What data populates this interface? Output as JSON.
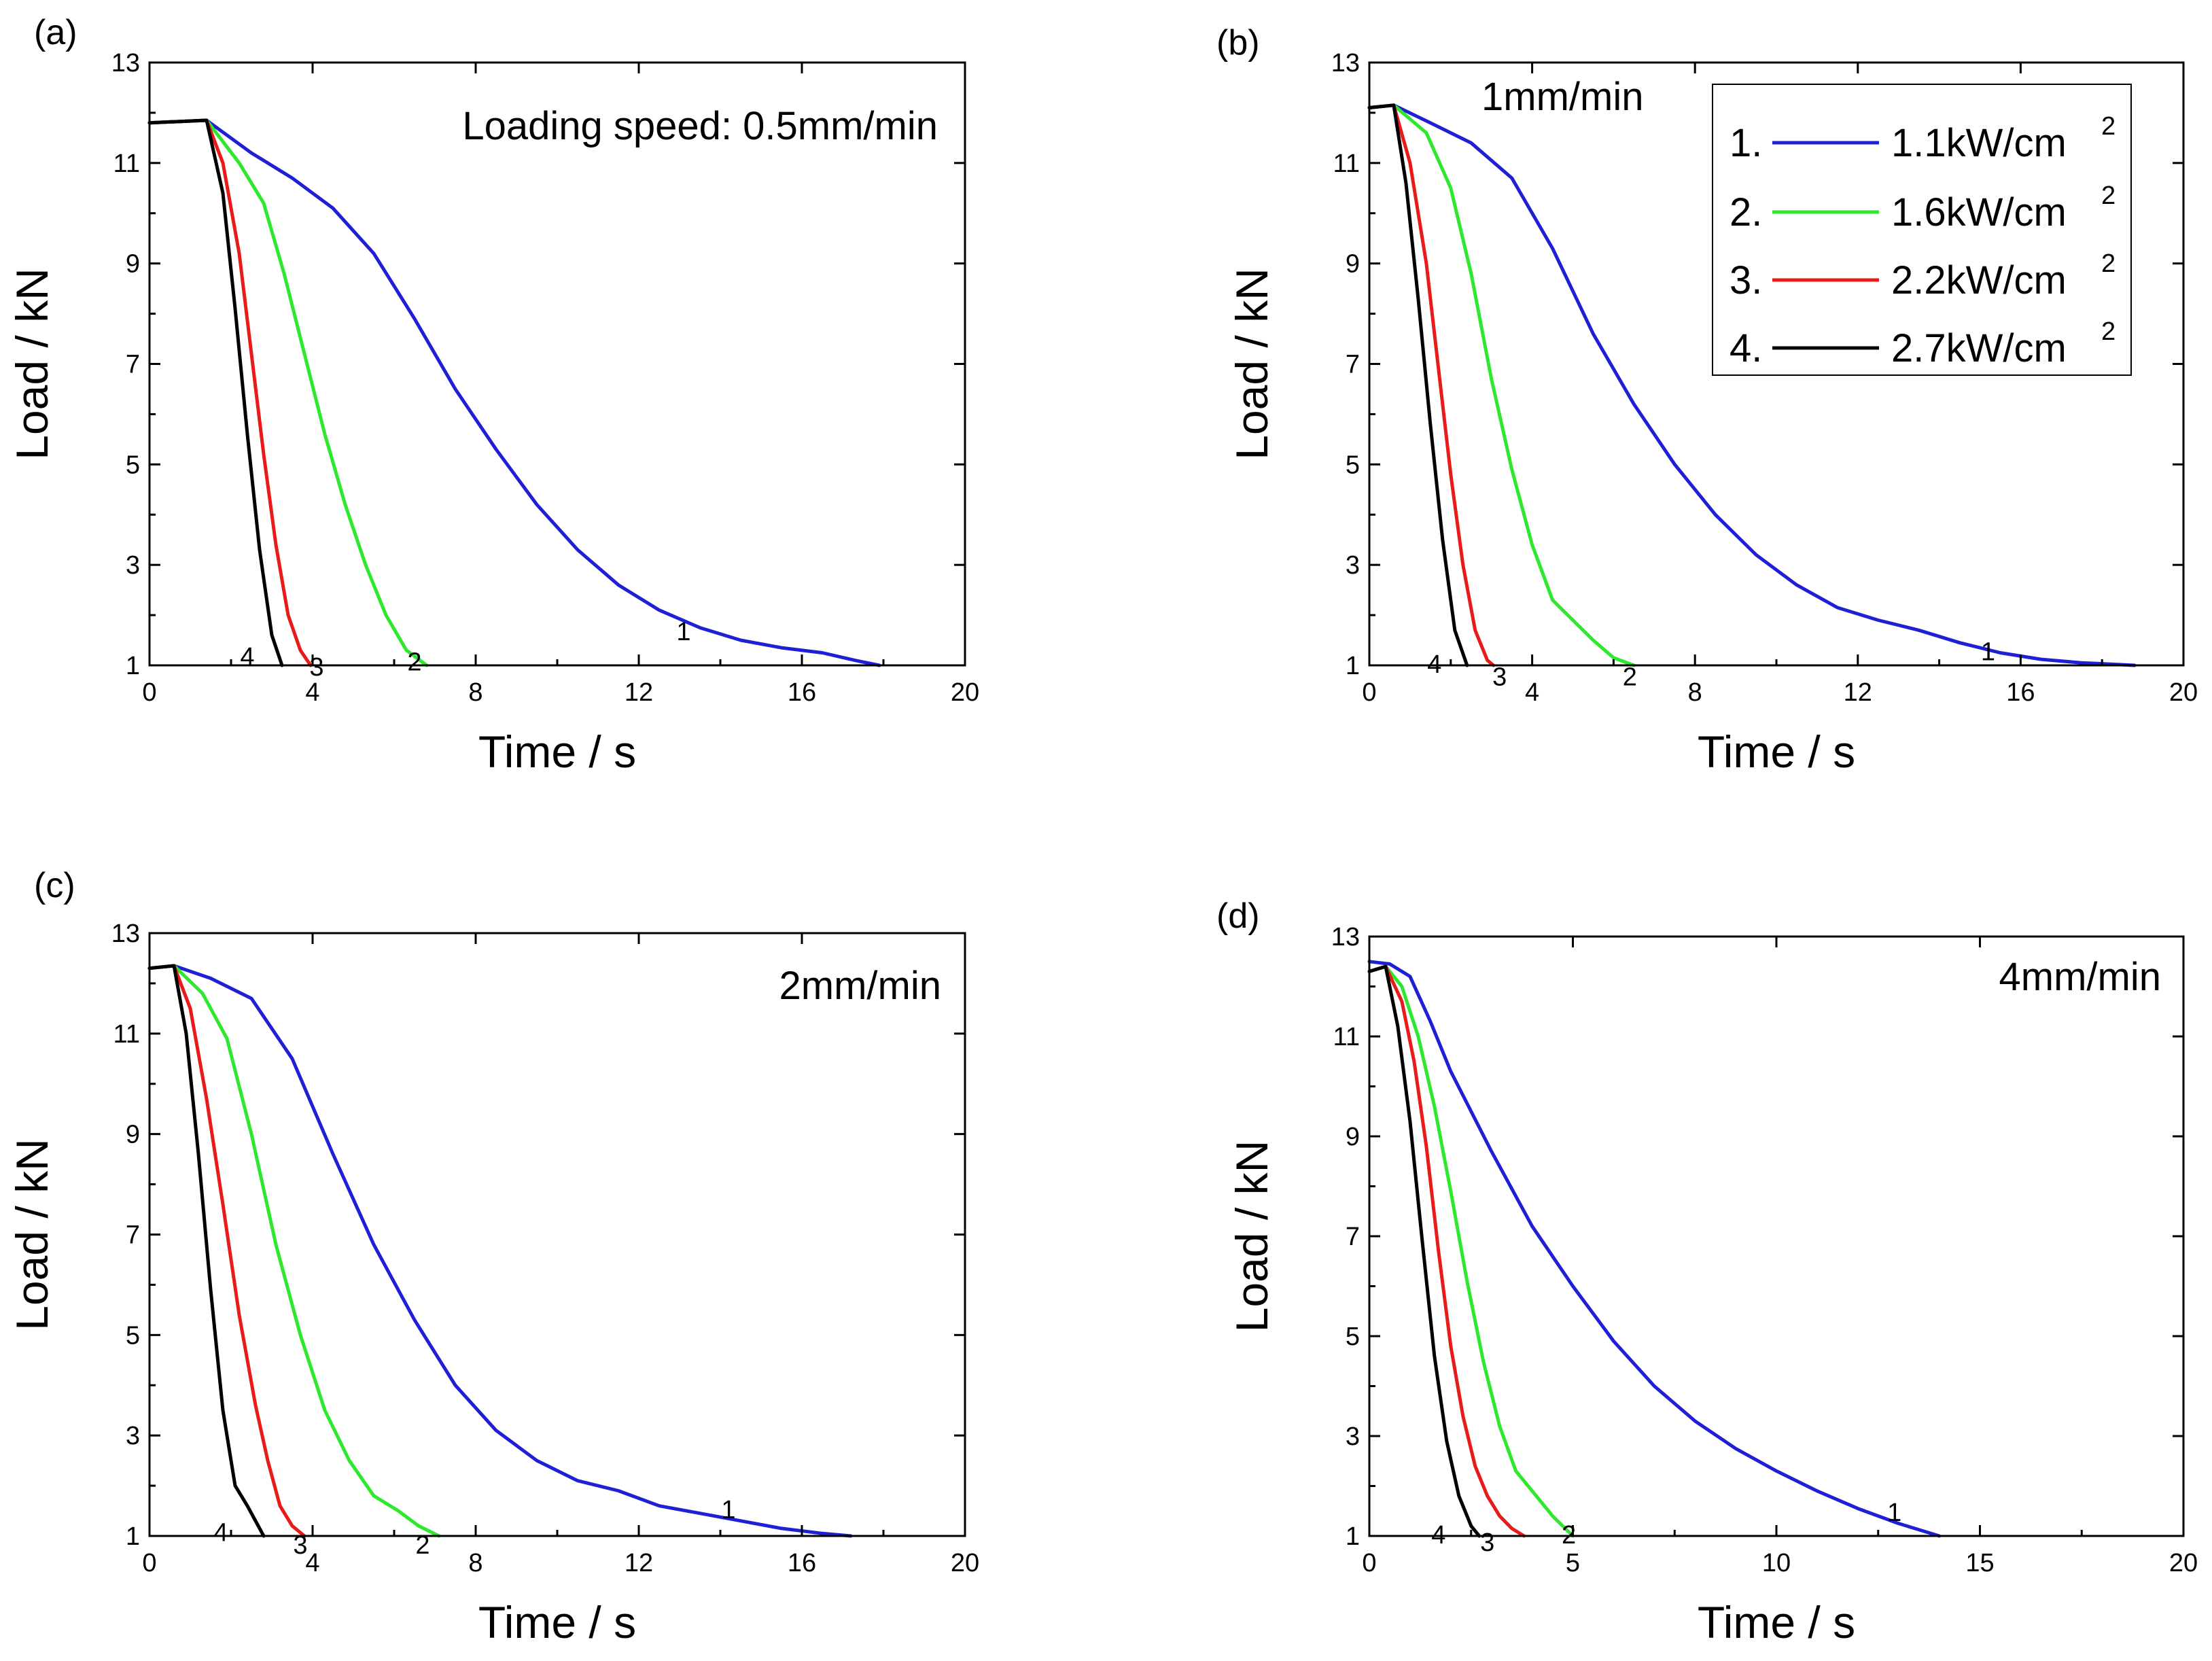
{
  "figure": {
    "colors": {
      "s1": "#1f1fd6",
      "s2": "#2ee82e",
      "s3": "#e81a1a",
      "s4": "#000000",
      "axis": "#000000",
      "bg": "#ffffff"
    },
    "legend": {
      "entries": [
        {
          "num": "1.",
          "label": "1.1kW/cm",
          "sup": "2",
          "key": "s1"
        },
        {
          "num": "2.",
          "label": "1.6kW/cm",
          "sup": "2",
          "key": "s2"
        },
        {
          "num": "3.",
          "label": "2.2kW/cm",
          "sup": "2",
          "key": "s3"
        },
        {
          "num": "4.",
          "label": "2.7kW/cm",
          "sup": "2",
          "key": "s4"
        }
      ]
    }
  },
  "chart_data": [
    {
      "panel": "(a)",
      "type": "line",
      "annotation": "Loading speed: 0.5mm/min",
      "xlabel": "Time / s",
      "ylabel": "Load / kN",
      "xlim": [
        0,
        20
      ],
      "ylim": [
        1,
        13
      ],
      "xticks": [
        "0",
        "4",
        "8",
        "12",
        "16",
        "20"
      ],
      "yticks": [
        "1",
        "3",
        "5",
        "7",
        "9",
        "11",
        "13"
      ],
      "series": [
        {
          "name": "1",
          "key": "s1",
          "label_at": [
            13.1,
            1.5
          ],
          "x": [
            0,
            1.4,
            2.5,
            3.5,
            4.5,
            5.5,
            6.5,
            7.5,
            8.5,
            9.5,
            10.5,
            11.5,
            12.5,
            13.5,
            14.5,
            15.5,
            16.5,
            17.3,
            17.9
          ],
          "y": [
            11.8,
            11.85,
            11.2,
            10.7,
            10.1,
            9.2,
            7.9,
            6.5,
            5.3,
            4.2,
            3.3,
            2.6,
            2.1,
            1.75,
            1.5,
            1.35,
            1.25,
            1.1,
            1.0
          ]
        },
        {
          "name": "2",
          "key": "s2",
          "label_at": [
            6.5,
            0.9
          ],
          "x": [
            0,
            1.4,
            2.2,
            2.8,
            3.3,
            3.8,
            4.3,
            4.8,
            5.3,
            5.8,
            6.3,
            6.8
          ],
          "y": [
            11.8,
            11.85,
            11.0,
            10.2,
            8.8,
            7.2,
            5.6,
            4.2,
            3.0,
            2.0,
            1.3,
            1.0
          ]
        },
        {
          "name": "3",
          "key": "s3",
          "label_at": [
            4.1,
            0.8
          ],
          "x": [
            0,
            1.4,
            1.8,
            2.2,
            2.5,
            2.8,
            3.1,
            3.4,
            3.7,
            3.95
          ],
          "y": [
            11.8,
            11.85,
            11.0,
            9.2,
            7.2,
            5.2,
            3.4,
            2.0,
            1.3,
            1.0
          ]
        },
        {
          "name": "4",
          "key": "s4",
          "label_at": [
            2.4,
            1.0
          ],
          "x": [
            0,
            1.4,
            1.8,
            2.1,
            2.4,
            2.7,
            3.0,
            3.25
          ],
          "y": [
            11.8,
            11.85,
            10.4,
            8.1,
            5.6,
            3.3,
            1.6,
            1.0
          ]
        }
      ]
    },
    {
      "panel": "(b)",
      "type": "line",
      "annotation": "1mm/min",
      "xlabel": "Time / s",
      "ylabel": "Load / kN",
      "xlim": [
        0,
        20
      ],
      "ylim": [
        1,
        13
      ],
      "xticks": [
        "0",
        "4",
        "8",
        "12",
        "16",
        "20"
      ],
      "yticks": [
        "1",
        "3",
        "5",
        "7",
        "9",
        "11",
        "13"
      ],
      "series": [
        {
          "name": "1",
          "key": "s1",
          "label_at": [
            15.2,
            1.1
          ],
          "x": [
            0,
            0.6,
            1.5,
            2.5,
            3.5,
            4.5,
            5.5,
            6.5,
            7.5,
            8.5,
            9.5,
            10.5,
            11.5,
            12.5,
            13.5,
            14.5,
            15.5,
            16.5,
            17.5,
            18.3,
            18.8
          ],
          "y": [
            12.1,
            12.15,
            11.8,
            11.4,
            10.7,
            9.3,
            7.6,
            6.2,
            5.0,
            4.0,
            3.2,
            2.6,
            2.15,
            1.9,
            1.7,
            1.45,
            1.25,
            1.12,
            1.05,
            1.02,
            1.0
          ]
        },
        {
          "name": "2",
          "key": "s2",
          "label_at": [
            6.4,
            0.6
          ],
          "x": [
            0,
            0.6,
            1.4,
            2.0,
            2.5,
            3.0,
            3.5,
            4.0,
            4.5,
            5.0,
            5.5,
            6.0,
            6.5
          ],
          "y": [
            12.1,
            12.15,
            11.6,
            10.5,
            8.8,
            6.7,
            4.9,
            3.4,
            2.3,
            1.9,
            1.5,
            1.15,
            1.0
          ]
        },
        {
          "name": "3",
          "key": "s3",
          "label_at": [
            3.2,
            0.6
          ],
          "x": [
            0,
            0.6,
            1.0,
            1.4,
            1.7,
            2.0,
            2.3,
            2.6,
            2.9,
            3.05
          ],
          "y": [
            12.1,
            12.15,
            11.0,
            9.0,
            6.9,
            4.8,
            3.0,
            1.7,
            1.1,
            1.0
          ]
        },
        {
          "name": "4",
          "key": "s4",
          "label_at": [
            1.6,
            0.85
          ],
          "x": [
            0,
            0.6,
            0.9,
            1.2,
            1.5,
            1.8,
            2.1,
            2.4
          ],
          "y": [
            12.1,
            12.15,
            10.6,
            8.3,
            5.8,
            3.5,
            1.7,
            1.0
          ]
        }
      ]
    },
    {
      "panel": "(c)",
      "type": "line",
      "annotation": "2mm/min",
      "xlabel": "Time / s",
      "ylabel": "Load / kN",
      "xlim": [
        0,
        20
      ],
      "ylim": [
        1,
        13
      ],
      "xticks": [
        "0",
        "4",
        "8",
        "12",
        "16",
        "20"
      ],
      "yticks": [
        "1",
        "3",
        "5",
        "7",
        "9",
        "11",
        "13"
      ],
      "series": [
        {
          "name": "1",
          "key": "s1",
          "label_at": [
            14.2,
            1.35
          ],
          "x": [
            0,
            0.6,
            1.5,
            2.5,
            3.5,
            4.5,
            5.5,
            6.5,
            7.5,
            8.5,
            9.5,
            10.5,
            11.5,
            12.5,
            13.5,
            14.5,
            15.5,
            16.5,
            17.2
          ],
          "y": [
            12.3,
            12.35,
            12.1,
            11.7,
            10.5,
            8.6,
            6.8,
            5.3,
            4.0,
            3.1,
            2.5,
            2.1,
            1.9,
            1.6,
            1.45,
            1.3,
            1.15,
            1.05,
            1.0
          ]
        },
        {
          "name": "2",
          "key": "s2",
          "label_at": [
            6.7,
            0.65
          ],
          "x": [
            0,
            0.6,
            1.3,
            1.9,
            2.5,
            3.1,
            3.7,
            4.3,
            4.9,
            5.5,
            6.1,
            6.6,
            7.1
          ],
          "y": [
            12.3,
            12.35,
            11.8,
            10.9,
            9.0,
            6.8,
            5.0,
            3.5,
            2.5,
            1.8,
            1.5,
            1.2,
            1.0
          ]
        },
        {
          "name": "3",
          "key": "s3",
          "label_at": [
            3.7,
            0.65
          ],
          "x": [
            0,
            0.6,
            1.0,
            1.4,
            1.8,
            2.2,
            2.6,
            2.9,
            3.2,
            3.5,
            3.8
          ],
          "y": [
            12.3,
            12.35,
            11.5,
            9.7,
            7.6,
            5.4,
            3.6,
            2.5,
            1.6,
            1.2,
            1.0
          ]
        },
        {
          "name": "4",
          "key": "s4",
          "label_at": [
            1.75,
            0.9
          ],
          "x": [
            0,
            0.6,
            0.9,
            1.2,
            1.5,
            1.8,
            2.1,
            2.4,
            2.6,
            2.8
          ],
          "y": [
            12.3,
            12.35,
            11.0,
            8.6,
            5.9,
            3.5,
            2.0,
            1.6,
            1.3,
            1.0
          ]
        }
      ]
    },
    {
      "panel": "(d)",
      "type": "line",
      "annotation": "4mm/min",
      "xlabel": "Time / s",
      "ylabel": "Load / kN",
      "xlim": [
        0,
        20
      ],
      "ylim": [
        1,
        13
      ],
      "xticks": [
        "0",
        "5",
        "10",
        "15",
        "20"
      ],
      "yticks": [
        "1",
        "3",
        "5",
        "7",
        "9",
        "11",
        "13"
      ],
      "series": [
        {
          "name": "1",
          "key": "s1",
          "label_at": [
            12.9,
            1.3
          ],
          "x": [
            0,
            0.5,
            1.0,
            1.5,
            2.0,
            3.0,
            4.0,
            5.0,
            6.0,
            7.0,
            8.0,
            9.0,
            10.0,
            11.0,
            12.0,
            13.0,
            14.0
          ],
          "y": [
            12.5,
            12.45,
            12.2,
            11.3,
            10.3,
            8.7,
            7.2,
            6.0,
            4.9,
            4.0,
            3.3,
            2.75,
            2.3,
            1.9,
            1.55,
            1.25,
            1.0
          ]
        },
        {
          "name": "2",
          "key": "s2",
          "label_at": [
            4.9,
            0.85
          ],
          "x": [
            0,
            0.4,
            0.8,
            1.2,
            1.6,
            2.0,
            2.4,
            2.8,
            3.2,
            3.6,
            4.0,
            4.5,
            5.0
          ],
          "y": [
            12.3,
            12.4,
            12.0,
            11.0,
            9.6,
            7.9,
            6.1,
            4.5,
            3.2,
            2.3,
            1.9,
            1.4,
            1.0
          ]
        },
        {
          "name": "3",
          "key": "s3",
          "label_at": [
            2.9,
            0.7
          ],
          "x": [
            0,
            0.4,
            0.8,
            1.1,
            1.4,
            1.7,
            2.0,
            2.3,
            2.6,
            2.9,
            3.2,
            3.5,
            3.8
          ],
          "y": [
            12.3,
            12.4,
            11.7,
            10.5,
            8.8,
            6.7,
            4.8,
            3.4,
            2.4,
            1.8,
            1.4,
            1.15,
            1.0
          ]
        },
        {
          "name": "4",
          "key": "s4",
          "label_at": [
            1.7,
            0.85
          ],
          "x": [
            0,
            0.4,
            0.7,
            1.0,
            1.3,
            1.6,
            1.9,
            2.2,
            2.5,
            2.7
          ],
          "y": [
            12.3,
            12.4,
            11.2,
            9.3,
            6.9,
            4.6,
            2.9,
            1.8,
            1.2,
            1.0
          ]
        }
      ]
    }
  ]
}
